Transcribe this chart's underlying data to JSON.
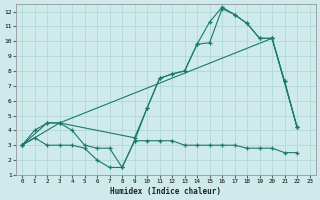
{
  "xlabel": "Humidex (Indice chaleur)",
  "background_color": "#ceeaea",
  "grid_color": "#aed4d4",
  "line_color": "#1a7a6a",
  "xlim": [
    -0.5,
    23.5
  ],
  "ylim": [
    1,
    12.5
  ],
  "xticks": [
    0,
    1,
    2,
    3,
    4,
    5,
    6,
    7,
    8,
    9,
    10,
    11,
    12,
    13,
    14,
    15,
    16,
    17,
    18,
    19,
    20,
    21,
    22,
    23
  ],
  "yticks": [
    1,
    2,
    3,
    4,
    5,
    6,
    7,
    8,
    9,
    10,
    11,
    12
  ],
  "line1_x": [
    0,
    1,
    2,
    3,
    4,
    5,
    6,
    7,
    8,
    9,
    10,
    11,
    12,
    13,
    14,
    15,
    16,
    17,
    18,
    19,
    20,
    21,
    22
  ],
  "line1_y": [
    3,
    4,
    4.5,
    4.5,
    4,
    3,
    2.8,
    2.8,
    1.5,
    3.3,
    5.5,
    7.5,
    7.8,
    8,
    9.8,
    9.9,
    12.2,
    11.8,
    11.2,
    10.2,
    10.2,
    7.3,
    4.2
  ],
  "line2_x": [
    0,
    2,
    3,
    9,
    10,
    11,
    12,
    13,
    14,
    15,
    16,
    17,
    18,
    19,
    20,
    21,
    22
  ],
  "line2_y": [
    3,
    4.5,
    4.5,
    3.5,
    5.5,
    7.5,
    7.8,
    8,
    9.8,
    11.3,
    12.3,
    11.8,
    11.2,
    10.2,
    10.2,
    7.3,
    4.2
  ],
  "line3_x": [
    0,
    3,
    20,
    22
  ],
  "line3_y": [
    3,
    4.5,
    10.2,
    4.2
  ],
  "line4_x": [
    0,
    1,
    2,
    3,
    4,
    5,
    6,
    7,
    8,
    9,
    10,
    11,
    12,
    13,
    14,
    15,
    16,
    17,
    18,
    19,
    20,
    21,
    22
  ],
  "line4_y": [
    3,
    3.5,
    3,
    3,
    3,
    2.8,
    2,
    1.5,
    1.5,
    3.3,
    3.3,
    3.3,
    3.3,
    3,
    3,
    3,
    3,
    3,
    2.8,
    2.8,
    2.8,
    2.5,
    2.5
  ]
}
